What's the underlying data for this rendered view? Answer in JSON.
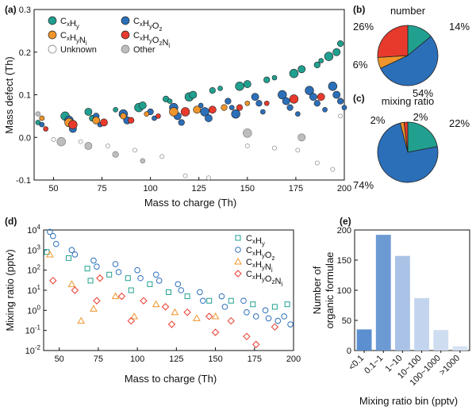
{
  "figure": {
    "panel_labels": {
      "a": "(a)",
      "b": "(b)",
      "c": "(c)",
      "d": "(d)",
      "e": "(e)"
    }
  },
  "colors": {
    "CxHy": "#21a090",
    "CxHyOz": "#2c6fb9",
    "CxHyNi": "#f0952b",
    "CxHyOzNi": "#e83a2c",
    "Unknown": "#ffffff",
    "Other": "#bdbdbd",
    "bar_main": "#6c9ad3",
    "bar_light": "#c8d8ef"
  },
  "chart_data": [
    {
      "id": "a",
      "type": "scatter",
      "xlabel": "Mass to charge (Th)",
      "ylabel": "Mass defect (Th)",
      "xlim": [
        40,
        200
      ],
      "ylim": [
        -0.1,
        0.3
      ],
      "xticks": [
        "50",
        "75",
        "100",
        "125",
        "150",
        "175",
        "200"
      ],
      "yticks": [
        "-0.1",
        "0.0",
        "0.1",
        "0.2",
        "0.3"
      ],
      "legend_position": "top-left",
      "legend": [
        {
          "key": "CxHy",
          "base": "C",
          "sub1": "x",
          "mid1": "H",
          "sub2": "y"
        },
        {
          "key": "CxHyOz",
          "base": "C",
          "sub1": "x",
          "mid1": "H",
          "sub2": "y",
          "mid2": "O",
          "sub3": "z"
        },
        {
          "key": "CxHyNi",
          "base": "C",
          "sub1": "x",
          "mid1": "H",
          "sub2": "y",
          "mid2": "N",
          "sub3": "i"
        },
        {
          "key": "CxHyOzNi",
          "base": "C",
          "sub1": "x",
          "mid1": "H",
          "sub2": "y",
          "mid2": "O",
          "sub3": "z",
          "mid3": "N",
          "sub4": "i"
        },
        {
          "key": "Unknown",
          "text": "Unknown"
        },
        {
          "key": "Other",
          "text": "Other"
        }
      ],
      "series": [
        {
          "name": "CxHy",
          "points": [
            [
              42,
              0.035
            ],
            [
              56,
              0.05
            ],
            [
              68,
              0.06
            ],
            [
              70,
              0.045
            ],
            [
              82,
              0.065
            ],
            [
              94,
              0.07
            ],
            [
              96,
              0.075
            ],
            [
              108,
              0.09
            ],
            [
              110,
              0.085
            ],
            [
              120,
              0.095
            ],
            [
              122,
              0.1
            ],
            [
              132,
              0.11
            ],
            [
              136,
              0.115
            ],
            [
              146,
              0.12
            ],
            [
              150,
              0.125
            ],
            [
              160,
              0.135
            ],
            [
              164,
              0.14
            ],
            [
              174,
              0.15
            ],
            [
              178,
              0.16
            ],
            [
              186,
              0.17
            ],
            [
              188,
              0.18
            ],
            [
              192,
              0.19
            ],
            [
              196,
              0.2
            ],
            [
              198,
              0.22
            ]
          ]
        },
        {
          "name": "CxHyOz",
          "points": [
            [
              44,
              0.03
            ],
            [
              58,
              0.04
            ],
            [
              60,
              0.02
            ],
            [
              72,
              0.05
            ],
            [
              74,
              0.03
            ],
            [
              86,
              0.055
            ],
            [
              88,
              0.04
            ],
            [
              100,
              0.06
            ],
            [
              102,
              0.045
            ],
            [
              112,
              0.07
            ],
            [
              114,
              0.05
            ],
            [
              116,
              0.035
            ],
            [
              126,
              0.075
            ],
            [
              128,
              0.06
            ],
            [
              130,
              0.045
            ],
            [
              140,
              0.085
            ],
            [
              142,
              0.07
            ],
            [
              144,
              0.055
            ],
            [
              154,
              0.095
            ],
            [
              156,
              0.08
            ],
            [
              158,
              0.06
            ],
            [
              168,
              0.1
            ],
            [
              170,
              0.085
            ],
            [
              172,
              0.07
            ],
            [
              176,
              0.055
            ],
            [
              182,
              0.11
            ],
            [
              184,
              0.095
            ],
            [
              186,
              0.08
            ],
            [
              190,
              0.065
            ],
            [
              194,
              0.12
            ],
            [
              196,
              0.1
            ],
            [
              198,
              0.085
            ],
            [
              200,
              0.07
            ]
          ]
        },
        {
          "name": "CxHyNi",
          "points": [
            [
              44,
              0.045
            ],
            [
              58,
              0.035
            ],
            [
              72,
              0.04
            ],
            [
              86,
              0.05
            ],
            [
              98,
              0.055
            ],
            [
              112,
              0.06
            ],
            [
              124,
              0.065
            ],
            [
              138,
              0.07
            ],
            [
              150,
              0.08
            ]
          ]
        },
        {
          "name": "CxHyOzNi",
          "points": [
            [
              46,
              0.02
            ],
            [
              60,
              0.03
            ],
            [
              76,
              0.035
            ],
            [
              90,
              0.04
            ],
            [
              104,
              0.05
            ],
            [
              118,
              0.06
            ],
            [
              132,
              0.065
            ],
            [
              146,
              0.07
            ],
            [
              160,
              0.08
            ],
            [
              174,
              0.09
            ],
            [
              188,
              0.095
            ]
          ]
        },
        {
          "name": "Unknown",
          "points": [
            [
              50,
              -0.005
            ],
            [
              64,
              -0.01
            ],
            [
              78,
              -0.02
            ],
            [
              92,
              -0.03
            ],
            [
              106,
              -0.045
            ],
            [
              118,
              -0.09
            ],
            [
              130,
              -0.095
            ],
            [
              150,
              -0.02
            ],
            [
              164,
              -0.025
            ],
            [
              176,
              -0.03
            ],
            [
              186,
              -0.06
            ],
            [
              194,
              -0.075
            ],
            [
              198,
              0.05
            ]
          ]
        },
        {
          "name": "Other",
          "points": [
            [
              42,
              0.055
            ],
            [
              54,
              -0.01
            ],
            [
              68,
              -0.02
            ],
            [
              82,
              -0.04
            ],
            [
              96,
              -0.055
            ],
            [
              150,
              0.01
            ],
            [
              178,
              0.0
            ]
          ]
        }
      ]
    },
    {
      "id": "b",
      "type": "pie",
      "title": "number",
      "slices": [
        {
          "name": "CxHy",
          "value": 14,
          "label": "14%"
        },
        {
          "name": "CxHyOz",
          "value": 54,
          "label": "54%"
        },
        {
          "name": "CxHyNi",
          "value": 6,
          "label": "6%"
        },
        {
          "name": "CxHyOzNi",
          "value": 26,
          "label": "26%"
        }
      ]
    },
    {
      "id": "c",
      "type": "pie",
      "title": "mixing ratio",
      "slices": [
        {
          "name": "CxHy",
          "value": 22,
          "label": "22%"
        },
        {
          "name": "CxHyOz",
          "value": 74,
          "label": "74%"
        },
        {
          "name": "CxHyNi",
          "value": 2,
          "label": "2%"
        },
        {
          "name": "CxHyOzNi",
          "value": 2,
          "label": "2%"
        }
      ]
    },
    {
      "id": "d",
      "type": "scatter",
      "xlabel": "Mass to charge (Th)",
      "ylabel": "Mixing ratio (pptv)",
      "xlim": [
        40,
        200
      ],
      "ylim": [
        0.01,
        10000
      ],
      "yscale": "log",
      "xticks": [
        "50",
        "75",
        "100",
        "125",
        "150",
        "175",
        "200"
      ],
      "legend_position": "top-right",
      "legend": [
        {
          "key": "CxHy",
          "marker": "square"
        },
        {
          "key": "CxHyOz",
          "marker": "circle"
        },
        {
          "key": "CxHyNi",
          "marker": "triangle"
        },
        {
          "key": "CxHyOzNi",
          "marker": "diamond"
        }
      ],
      "series": [
        {
          "name": "CxHy",
          "marker": "square",
          "points": [
            [
              42,
              800
            ],
            [
              56,
              400
            ],
            [
              68,
              120
            ],
            [
              70,
              30
            ],
            [
              82,
              60
            ],
            [
              94,
              40
            ],
            [
              96,
              10
            ],
            [
              108,
              20
            ],
            [
              120,
              8
            ],
            [
              132,
              5
            ],
            [
              146,
              3
            ],
            [
              160,
              3
            ],
            [
              174,
              2
            ],
            [
              188,
              1.5
            ],
            [
              196,
              2
            ]
          ]
        },
        {
          "name": "CxHyOz",
          "marker": "circle",
          "points": [
            [
              44,
              8000
            ],
            [
              46,
              5000
            ],
            [
              48,
              2000
            ],
            [
              58,
              1000
            ],
            [
              60,
              600
            ],
            [
              72,
              300
            ],
            [
              74,
              150
            ],
            [
              86,
              200
            ],
            [
              88,
              80
            ],
            [
              100,
              100
            ],
            [
              102,
              40
            ],
            [
              112,
              60
            ],
            [
              114,
              30
            ],
            [
              126,
              20
            ],
            [
              128,
              10
            ],
            [
              140,
              8
            ],
            [
              142,
              3
            ],
            [
              154,
              5
            ],
            [
              156,
              1.5
            ],
            [
              168,
              3
            ],
            [
              170,
              0.8
            ],
            [
              176,
              0.5
            ],
            [
              182,
              1
            ],
            [
              184,
              0.4
            ],
            [
              190,
              0.3
            ],
            [
              194,
              0.5
            ],
            [
              198,
              0.2
            ]
          ]
        },
        {
          "name": "CxHyNi",
          "marker": "triangle",
          "points": [
            [
              44,
              600
            ],
            [
              58,
              20
            ],
            [
              64,
              0.3
            ],
            [
              72,
              1.2
            ],
            [
              86,
              5
            ],
            [
              98,
              0.5
            ],
            [
              112,
              2
            ],
            [
              124,
              0.8
            ],
            [
              138,
              0.4
            ],
            [
              150,
              0.5
            ]
          ]
        },
        {
          "name": "CxHyOzNi",
          "marker": "diamond",
          "points": [
            [
              46,
              30
            ],
            [
              60,
              10
            ],
            [
              74,
              3
            ],
            [
              76,
              40
            ],
            [
              90,
              5
            ],
            [
              96,
              0.3
            ],
            [
              104,
              3
            ],
            [
              118,
              1.5
            ],
            [
              122,
              0.2
            ],
            [
              132,
              0.8
            ],
            [
              146,
              0.5
            ],
            [
              150,
              0.08
            ],
            [
              160,
              0.3
            ],
            [
              170,
              0.05
            ],
            [
              176,
              0.02
            ],
            [
              188,
              0.15
            ]
          ]
        }
      ]
    },
    {
      "id": "e",
      "type": "bar",
      "xlabel": "Mixing ratio bin (pptv)",
      "ylabel_lines": [
        "Number of",
        "organic formulae"
      ],
      "ylim": [
        0,
        200
      ],
      "yticks": [
        "0",
        "50",
        "100",
        "150",
        "200"
      ],
      "categories": [
        "<0.1",
        "0.1~1",
        "1~10",
        "10~100",
        "100~1000",
        ">1000"
      ],
      "values": [
        35,
        192,
        157,
        87,
        34,
        7
      ]
    }
  ]
}
